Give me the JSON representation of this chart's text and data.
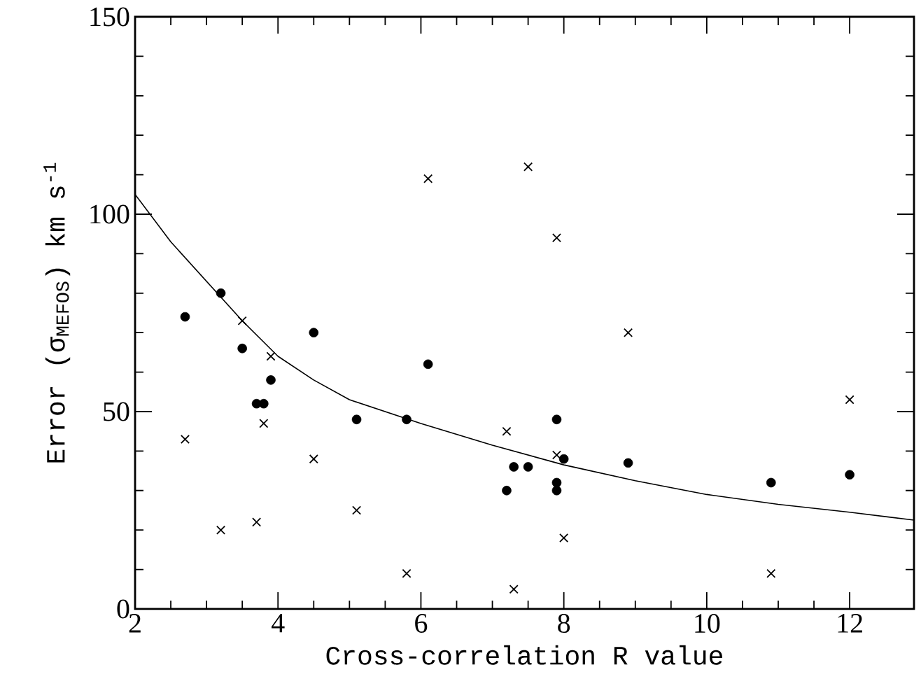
{
  "chart_data": {
    "type": "scatter",
    "xlabel": "Cross-correlation R value",
    "ylabel": "Error (σ$_{MEFOS}$) km s$^{-1}$",
    "xlim": [
      2,
      12.9
    ],
    "ylim": [
      0,
      150
    ],
    "xticks": [
      2,
      4,
      6,
      8,
      10,
      12
    ],
    "yticks": [
      0,
      50,
      100,
      150
    ],
    "series": [
      {
        "marker": "circle",
        "color": "#000000",
        "x": [
          2.7,
          3.2,
          3.5,
          3.7,
          3.8,
          3.9,
          4.5,
          5.1,
          5.8,
          6.1,
          7.2,
          7.3,
          7.5,
          7.9,
          7.9,
          7.9,
          8.0,
          8.9,
          10.9,
          12.0
        ],
        "values": [
          74,
          80,
          66,
          52,
          52,
          58,
          70,
          48,
          48,
          62,
          30,
          36,
          36,
          48,
          32,
          30,
          38,
          37,
          32,
          34
        ]
      },
      {
        "marker": "cross",
        "color": "#000000",
        "x": [
          2.7,
          3.2,
          3.5,
          3.7,
          3.8,
          3.9,
          4.5,
          5.1,
          5.8,
          6.1,
          7.2,
          7.3,
          7.5,
          7.9,
          7.9,
          8.0,
          8.9,
          10.9,
          12.0
        ],
        "values": [
          43,
          20,
          73,
          22,
          47,
          64,
          38,
          25,
          9,
          109,
          45,
          5,
          112,
          94,
          39,
          18,
          70,
          9,
          53
        ]
      },
      {
        "type": "line",
        "marker": "none",
        "line_style": "solid",
        "color": "#000000",
        "x": [
          2,
          2.5,
          3,
          3.5,
          4,
          4.5,
          5,
          6,
          7,
          8,
          9,
          10,
          11,
          12,
          12.9
        ],
        "values": [
          105,
          93,
          83,
          73,
          64,
          58,
          53,
          47,
          41.5,
          36.5,
          32.5,
          29,
          26.5,
          24.5,
          22.5
        ]
      }
    ]
  }
}
